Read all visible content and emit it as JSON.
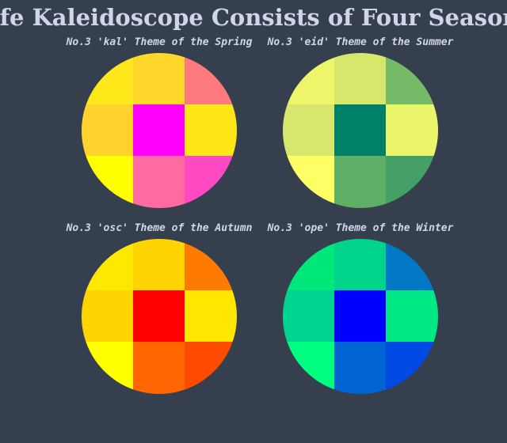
{
  "title": "Life Kaleidoscope Consists of Four Seasons",
  "chart_data": {
    "type": "heatmap",
    "panels": [
      {
        "title": "No.3 'kal' Theme of the Spring",
        "season": "spring",
        "grid": [
          [
            "#ffe81a",
            "#ffd62a",
            "#ff7a7f"
          ],
          [
            "#ffd22d",
            "#ff00ff",
            "#ffe617"
          ],
          [
            "#ffff00",
            "#ff6aa0",
            "#ff49c3"
          ]
        ]
      },
      {
        "title": "No.3 'eid' Theme of the Summer",
        "season": "summer",
        "grid": [
          [
            "#edf66a",
            "#d6e76c",
            "#75ba67"
          ],
          [
            "#d6e76c",
            "#008066",
            "#ebf56a"
          ],
          [
            "#ffff66",
            "#5fae65",
            "#45a065"
          ]
        ]
      },
      {
        "title": "No.3 'osc' Theme of the Autumn",
        "season": "autumn",
        "grid": [
          [
            "#ffe800",
            "#ffd400",
            "#ff7a00"
          ],
          [
            "#ffd500",
            "#ff0000",
            "#ffe700"
          ],
          [
            "#ffff00",
            "#ff6600",
            "#ff4b00"
          ]
        ]
      },
      {
        "title": "No.3 'ope' Theme of the Winter",
        "season": "winter",
        "grid": [
          [
            "#00e87a",
            "#00d38a",
            "#0078c5"
          ],
          [
            "#00d38f",
            "#0000ff",
            "#00e985"
          ],
          [
            "#00ff80",
            "#0064d3",
            "#0049e5"
          ]
        ]
      }
    ]
  }
}
